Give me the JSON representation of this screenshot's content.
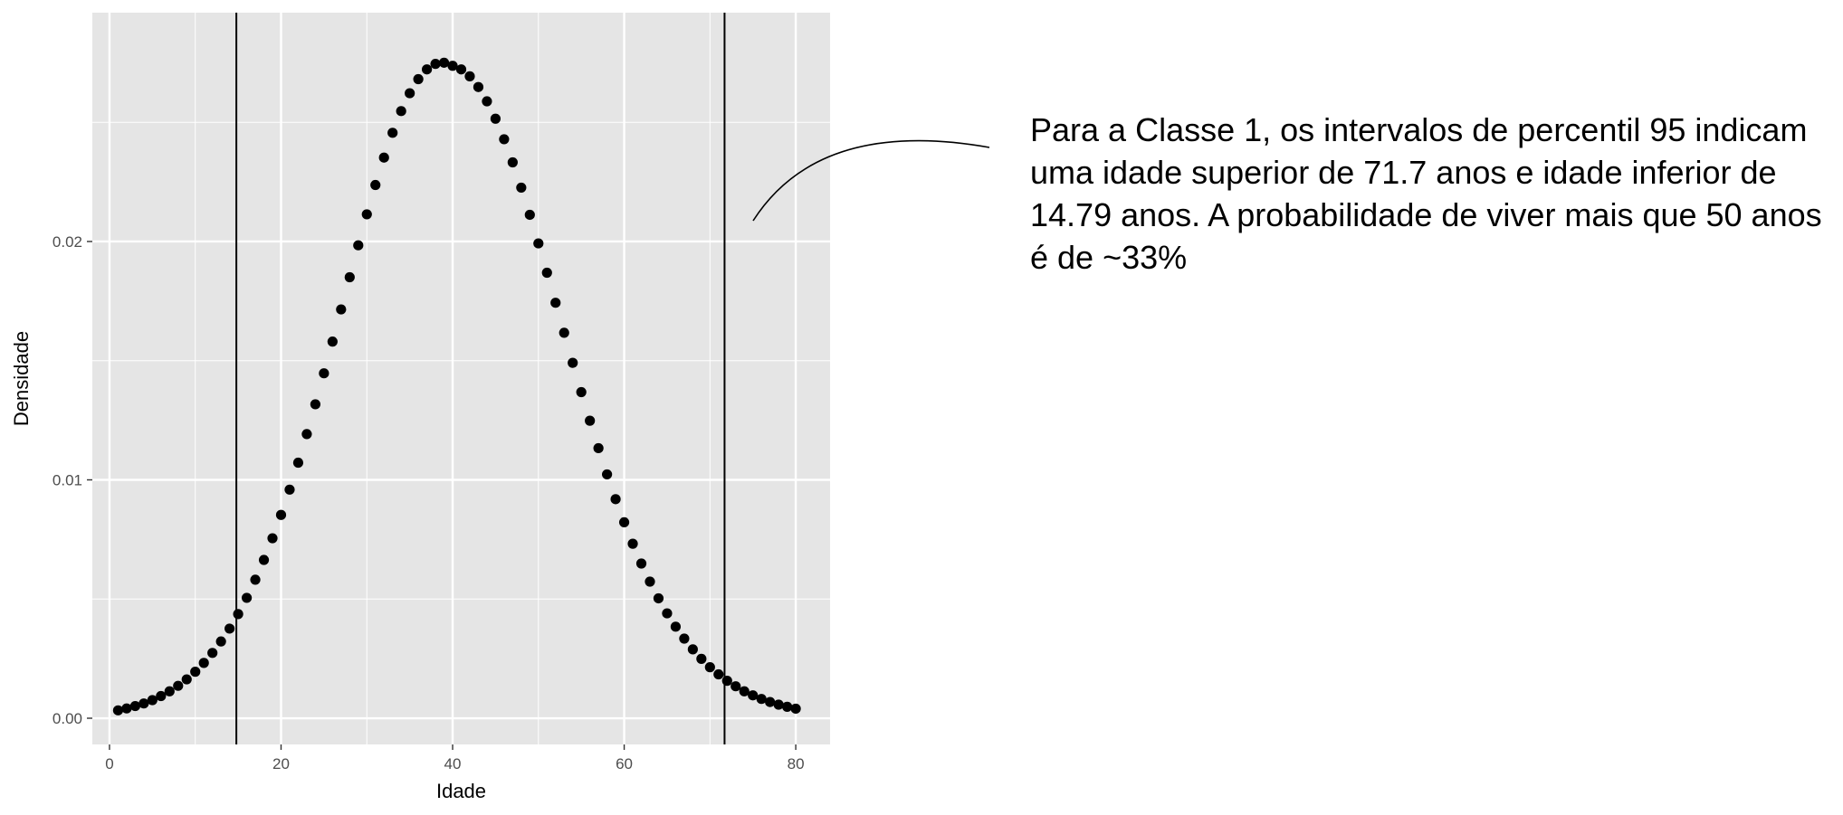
{
  "chart_data": {
    "type": "scatter",
    "title": "",
    "xlabel": "Idade",
    "ylabel": "Densidade",
    "xlim": [
      -2,
      84
    ],
    "ylim": [
      -0.0011,
      0.0296
    ],
    "x_ticks": [
      0,
      20,
      40,
      60,
      80
    ],
    "y_ticks": [
      0.0,
      0.01,
      0.02
    ],
    "x_tick_labels": [
      "0",
      "20",
      "40",
      "60",
      "80"
    ],
    "y_tick_labels": [
      "0.00",
      "0.01",
      "0.02"
    ],
    "grid": true,
    "point_color": "#000000",
    "panel_background": "#e5e5e5",
    "grid_color": "#ffffff",
    "vlines": [
      14.79,
      71.7
    ],
    "series": [
      {
        "x": [
          1,
          2,
          3,
          4,
          5,
          6,
          7,
          8,
          9,
          10,
          11,
          12,
          13,
          14,
          15,
          16,
          17,
          18,
          19,
          20,
          21,
          22,
          23,
          24,
          25,
          26,
          27,
          28,
          29,
          30,
          31,
          32,
          33,
          34,
          35,
          36,
          37,
          38,
          39,
          40,
          41,
          42,
          43,
          44,
          45,
          46,
          47,
          48,
          49,
          50,
          51,
          52,
          53,
          54,
          55,
          56,
          57,
          58,
          59,
          60,
          61,
          62,
          63,
          64,
          65,
          66,
          67,
          68,
          69,
          70,
          71,
          72,
          73,
          74,
          75,
          76,
          77,
          78,
          79,
          80
        ],
        "y": [
          0.00033,
          0.00041,
          0.00051,
          0.00062,
          0.00076,
          0.00093,
          0.00113,
          0.00136,
          0.00163,
          0.00195,
          0.00232,
          0.00274,
          0.00322,
          0.00376,
          0.00437,
          0.00505,
          0.00581,
          0.00664,
          0.00755,
          0.00853,
          0.00959,
          0.01072,
          0.01192,
          0.01317,
          0.01447,
          0.0158,
          0.01715,
          0.0185,
          0.01984,
          0.02114,
          0.02237,
          0.02352,
          0.02456,
          0.02547,
          0.02622,
          0.02681,
          0.02722,
          0.02745,
          0.0275,
          0.02737,
          0.02722,
          0.02693,
          0.02648,
          0.02588,
          0.02515,
          0.02429,
          0.02332,
          0.02226,
          0.02112,
          0.01992,
          0.01869,
          0.01743,
          0.01617,
          0.01491,
          0.01368,
          0.01248,
          0.01133,
          0.01023,
          0.00919,
          0.00822,
          0.00732,
          0.00649,
          0.00573,
          0.00503,
          0.0044,
          0.00384,
          0.00334,
          0.00289,
          0.00249,
          0.00214,
          0.00184,
          0.00157,
          0.00134,
          0.00113,
          0.00096,
          0.00081,
          0.00068,
          0.00057,
          0.00048,
          0.0004
        ]
      }
    ]
  },
  "annotation": {
    "text": "Para a Classe 1, os intervalos de percentil 95 indicam\numa idade superior de 71.7 anos e idade inferior de\n14.79 anos. A probabilidade de viver mais que 50 anos\né de ~33%"
  }
}
